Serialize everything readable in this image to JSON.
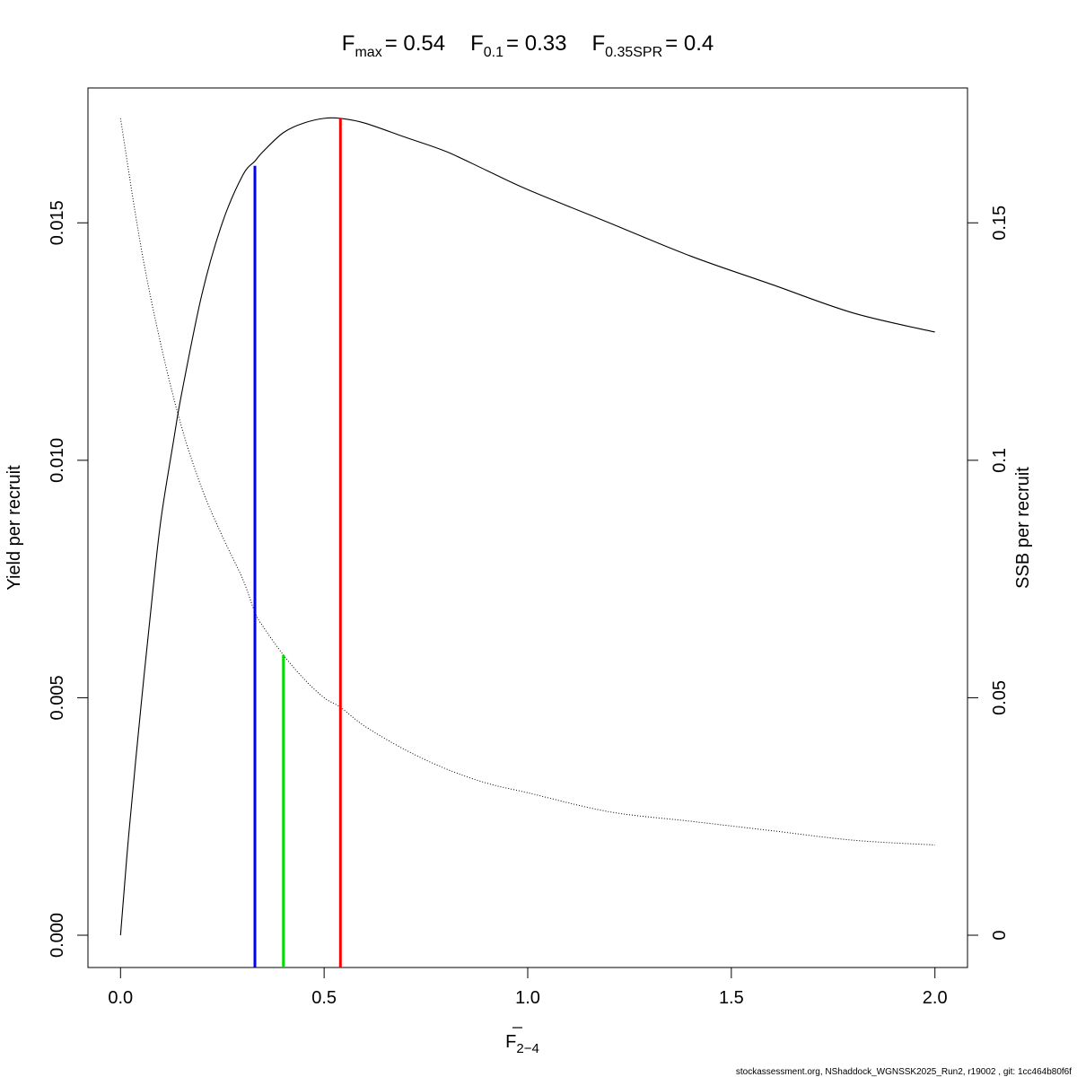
{
  "title_parts": [
    {
      "main": "F",
      "sub": "max",
      "value": "= 0.54"
    },
    {
      "main": "F",
      "sub": "0.1",
      "value": "= 0.33"
    },
    {
      "main": "F",
      "sub": "0.35SPR",
      "value": "= 0.4"
    }
  ],
  "footer": "stockassessment.org, NShaddock_WGNSSK2025_Run2, r19002 , git: 1cc464b80f6f",
  "chart_data": {
    "type": "line",
    "xlabel": {
      "main": "F",
      "sub": "2−4"
    },
    "ylabel_left": "Yield per recruit",
    "ylabel_right": "SSB per recruit",
    "x_range": [
      -0.08,
      2.08
    ],
    "y_left_range": [
      -0.00068,
      0.01784
    ],
    "y_right_range": [
      -0.0068,
      0.1784
    ],
    "x_ticks": [
      {
        "v": 0.0,
        "label": "0.0"
      },
      {
        "v": 0.5,
        "label": "0.5"
      },
      {
        "v": 1.0,
        "label": "1.0"
      },
      {
        "v": 1.5,
        "label": "1.5"
      },
      {
        "v": 2.0,
        "label": "2.0"
      }
    ],
    "y_left_ticks": [
      {
        "v": 0.0,
        "label": "0.000"
      },
      {
        "v": 0.005,
        "label": "0.005"
      },
      {
        "v": 0.01,
        "label": "0.010"
      },
      {
        "v": 0.015,
        "label": "0.015"
      }
    ],
    "y_right_ticks": [
      {
        "v": 0.0,
        "label": "0"
      },
      {
        "v": 0.05,
        "label": "0.05"
      },
      {
        "v": 0.1,
        "label": "0.1"
      },
      {
        "v": 0.15,
        "label": "0.15"
      }
    ],
    "grid": false,
    "legend": "none",
    "series": [
      {
        "axis": "left",
        "style": "solid",
        "color": "#000000",
        "x": [
          0,
          0.02,
          0.05,
          0.08,
          0.1,
          0.13,
          0.15,
          0.2,
          0.25,
          0.3,
          0.33,
          0.35,
          0.4,
          0.45,
          0.5,
          0.54,
          0.6,
          0.7,
          0.8,
          0.9,
          1.0,
          1.2,
          1.4,
          1.6,
          1.8,
          2.0
        ],
        "y": [
          0,
          0.0021,
          0.0048,
          0.0073,
          0.0088,
          0.0104,
          0.0114,
          0.0135,
          0.015,
          0.016,
          0.0163,
          0.0165,
          0.0169,
          0.0171,
          0.0172,
          0.0172,
          0.0171,
          0.0168,
          0.0165,
          0.0161,
          0.0157,
          0.015,
          0.0143,
          0.0137,
          0.0131,
          0.0127
        ]
      },
      {
        "axis": "right",
        "style": "dotted",
        "color": "#000000",
        "x": [
          0,
          0.05,
          0.1,
          0.15,
          0.2,
          0.25,
          0.3,
          0.33,
          0.35,
          0.4,
          0.45,
          0.5,
          0.54,
          0.6,
          0.7,
          0.8,
          0.9,
          1.0,
          1.2,
          1.4,
          1.6,
          1.8,
          2.0
        ],
        "y": [
          0.172,
          0.145,
          0.124,
          0.107,
          0.094,
          0.084,
          0.075,
          0.068,
          0.065,
          0.059,
          0.054,
          0.05,
          0.048,
          0.044,
          0.039,
          0.035,
          0.032,
          0.03,
          0.026,
          0.024,
          0.022,
          0.02,
          0.019
        ]
      }
    ],
    "reference_lines": [
      {
        "label": "F0.1",
        "x": 0.33,
        "y_top": 0.0162,
        "color": "#0000ff"
      },
      {
        "label": "F0.35SPR",
        "x": 0.4,
        "y_top": 0.0059,
        "color": "#00dd00"
      },
      {
        "label": "Fmax",
        "x": 0.54,
        "y_top": 0.0172,
        "color": "#ff0000"
      }
    ]
  }
}
